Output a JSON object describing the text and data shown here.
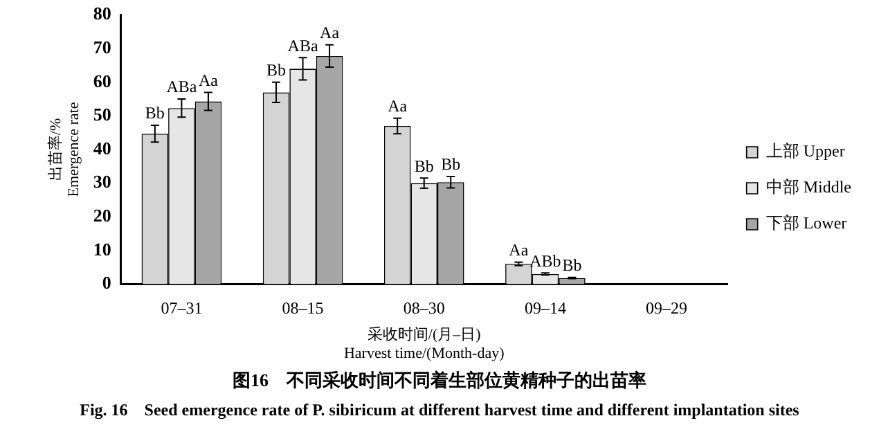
{
  "chart_data": {
    "type": "bar",
    "title": "图16　不同采收时间不同着生部位黄精种子的出苗率",
    "subtitle": "Fig. 16　Seed emergence rate of P. sibiricum at different harvest time and different implantation sites",
    "xlabel": "采收时间/(月–日)\nHarvest time/(Month-day)",
    "ylabel": "出苗率/%\nEmergence rate",
    "categories": [
      "07–31",
      "08–15",
      "08–30",
      "09–14",
      "09–29"
    ],
    "series": [
      {
        "name": "上部 Upper",
        "color": "#d4d4d4",
        "values": [
          44.7,
          57,
          47,
          6,
          0
        ],
        "errors": [
          2.5,
          3,
          2.3,
          0.5,
          null
        ],
        "value_labels": [
          "Bb",
          "Bb",
          "Aa",
          "Aa",
          null
        ]
      },
      {
        "name": "中部 Middle",
        "color": "#e6e6e6",
        "values": [
          52.3,
          64,
          30,
          3,
          0
        ],
        "errors": [
          2.7,
          3.3,
          1.5,
          0.3,
          null
        ],
        "value_labels": [
          "ABa",
          "ABa",
          "Bb",
          "ABb",
          null
        ]
      },
      {
        "name": "下部 Lower",
        "color": "#a6a6a6",
        "values": [
          54.3,
          67.8,
          30.3,
          1.8,
          0
        ],
        "errors": [
          2.7,
          3.3,
          1.7,
          0.2,
          null
        ],
        "value_labels": [
          "Aa",
          "Aa",
          "Bb",
          "Bb",
          null
        ]
      }
    ],
    "ylim": [
      0,
      80
    ],
    "yticks": [
      0,
      10,
      20,
      30,
      40,
      50,
      60,
      70,
      80
    ],
    "grid": false,
    "legend": "right"
  }
}
